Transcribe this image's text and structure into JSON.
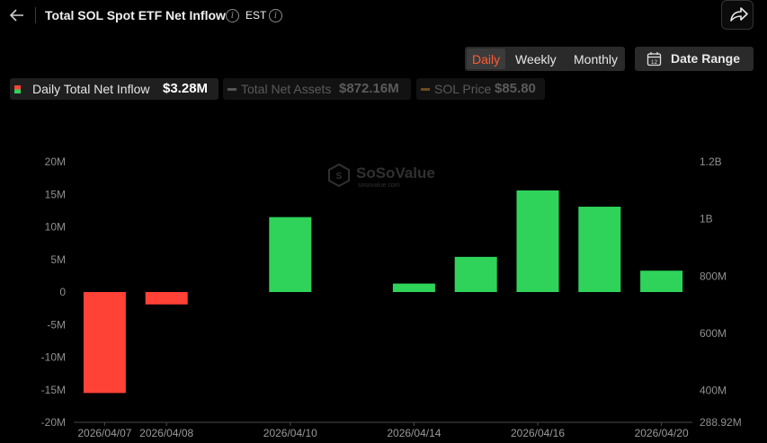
{
  "header": {
    "title": "Total SOL Spot ETF Net Inflow",
    "timezone": "EST"
  },
  "period_tabs": [
    "Daily",
    "Weekly",
    "Monthly"
  ],
  "active_tab": "Daily",
  "date_range_label": "Date Range",
  "legend": [
    {
      "label": "Daily Total Net Inflow",
      "value": "$3.28M",
      "color": "#34d058",
      "active": true
    },
    {
      "label": "Total Net Assets",
      "value": "$872.16M",
      "color": "#555555",
      "active": false
    },
    {
      "label": "SOL Price",
      "value": "$85.80",
      "color": "#6b4a1f",
      "active": false
    }
  ],
  "watermark": {
    "brand": "SoSoValue",
    "url": "sosovalue.com"
  },
  "colors": {
    "positive": "#2fd35a",
    "negative": "#ff4136",
    "accent": "#ff5a36",
    "background": "#000000"
  },
  "chart_data": {
    "type": "bar",
    "categories": [
      "2026/04/07",
      "2026/04/08",
      "2026/04/09",
      "2026/04/10",
      "2026/04/13",
      "2026/04/14",
      "2026/04/15",
      "2026/04/16",
      "2026/04/17",
      "2026/04/20"
    ],
    "x_tick_labels": [
      "2026/04/07",
      "2026/04/08",
      "2026/04/10",
      "2026/04/14",
      "2026/04/16",
      "2026/04/20"
    ],
    "series": [
      {
        "name": "Daily Total Net Inflow",
        "values": [
          -15.5,
          -1.9,
          0,
          11.5,
          0,
          1.3,
          5.4,
          15.6,
          13.1,
          3.28
        ]
      }
    ],
    "ylim": [
      -20,
      20
    ],
    "y_ticks": [
      "20M",
      "15M",
      "10M",
      "5M",
      "0",
      "-5M",
      "-10M",
      "-15M",
      "-20M"
    ],
    "y_tick_values": [
      20,
      15,
      10,
      5,
      0,
      -5,
      -10,
      -15,
      -20
    ],
    "y2_ticks": [
      "1.2B",
      "1B",
      "800M",
      "600M",
      "400M",
      "288.92M"
    ],
    "y2_tick_values": [
      1200,
      1000,
      800,
      600,
      400,
      288.92
    ],
    "y2lim": [
      288.92,
      1200
    ]
  }
}
